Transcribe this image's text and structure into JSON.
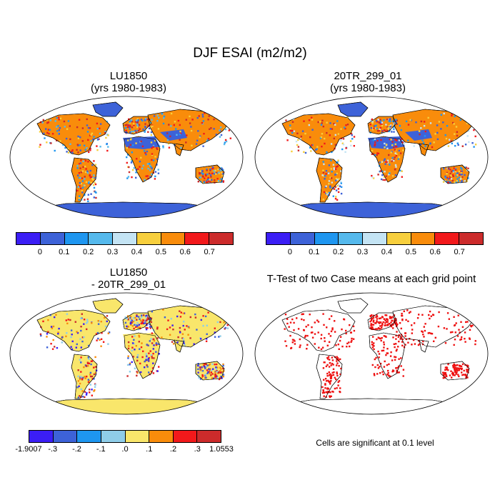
{
  "title": "DJF ESAI (m2/m2)",
  "panels": [
    {
      "line1": "LU1850",
      "line2": "(yrs 1980-1983)"
    },
    {
      "line1": "20TR_299_01",
      "line2": "(yrs 1980-1983)"
    },
    {
      "line1": "LU1850",
      "line2": "- 20TR_299_01"
    },
    {
      "line1": "T-Test of two Case means at each grid point",
      "line2": ""
    }
  ],
  "colorbar_top": {
    "colors": [
      "#3b1ef5",
      "#3d62d8",
      "#1e96f0",
      "#55b9ec",
      "#c4e4f4",
      "#f7cf3d",
      "#f98c0b",
      "#f2191b",
      "#cc2b2b"
    ],
    "labels": [
      "0",
      "0.1",
      "0.2",
      "0.3",
      "0.4",
      "0.5",
      "0.6",
      "0.7"
    ]
  },
  "colorbar_diff": {
    "colors": [
      "#3b1ef5",
      "#3d62d8",
      "#1e96f0",
      "#8fcde8",
      "#f9e66b",
      "#f98c0b",
      "#f2191b",
      "#cc2b2b"
    ],
    "labels": [
      "-1.9007",
      "-.3",
      "-.2",
      "-.1",
      ".0",
      ".1",
      ".2",
      ".3",
      "1.0553"
    ]
  },
  "significance_note": "Cells are significant at 0.1 level"
}
